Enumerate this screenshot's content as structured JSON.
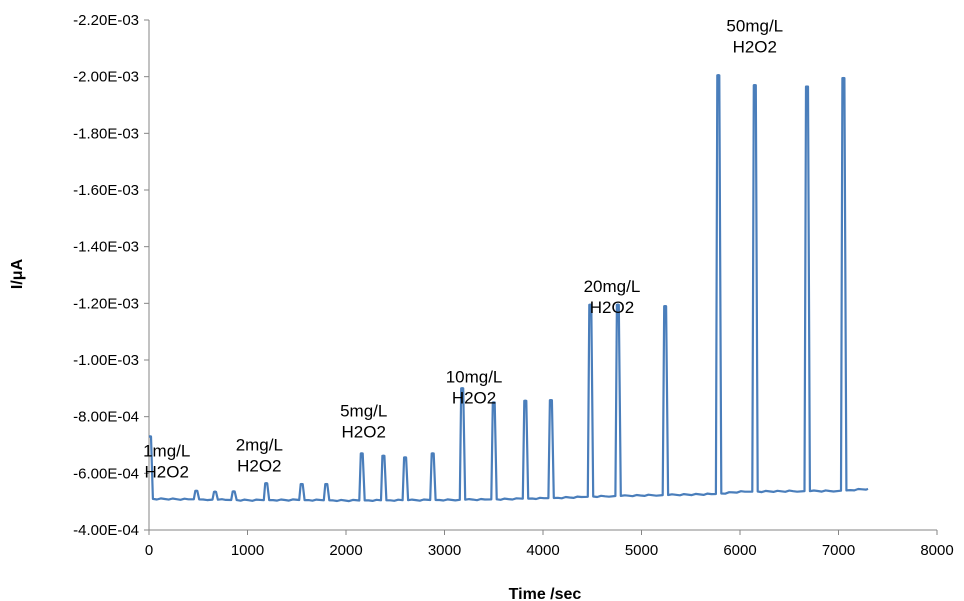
{
  "chart_data": {
    "type": "line",
    "title": "",
    "xlabel": "Time /sec",
    "ylabel": "I/μA",
    "xlim": [
      0,
      8000
    ],
    "ylim": [
      -0.0004,
      -0.0022
    ],
    "x_ticks": [
      "0",
      "1000",
      "2000",
      "3000",
      "4000",
      "5000",
      "6000",
      "7000",
      "8000"
    ],
    "y_ticks": [
      "-4.00E-04",
      "-6.00E-04",
      "-8.00E-04",
      "-1.00E-03",
      "-1.20E-03",
      "-1.40E-03",
      "-1.60E-03",
      "-1.80E-03",
      "-2.00E-03",
      "-2.20E-03"
    ],
    "grid": false,
    "legend": "none",
    "series": [
      {
        "color": "#4a7ebb",
        "baseline": [
          [
            0,
            -0.00051
          ],
          [
            500,
            -0.000508
          ],
          [
            1000,
            -0.000505
          ],
          [
            1500,
            -0.000506
          ],
          [
            2000,
            -0.000504
          ],
          [
            2500,
            -0.000505
          ],
          [
            3000,
            -0.000506
          ],
          [
            3500,
            -0.000508
          ],
          [
            4000,
            -0.000512
          ],
          [
            4300,
            -0.000515
          ],
          [
            4500,
            -0.000518
          ],
          [
            5000,
            -0.000522
          ],
          [
            5500,
            -0.000525
          ],
          [
            5750,
            -0.000527
          ],
          [
            6000,
            -0.000535
          ],
          [
            6500,
            -0.000537
          ],
          [
            7000,
            -0.000538
          ],
          [
            7300,
            -0.000545
          ]
        ],
        "peaks": [
          {
            "x": 10,
            "y": -0.00073
          },
          {
            "x": 480,
            "y": -0.000538
          },
          {
            "x": 670,
            "y": -0.000535
          },
          {
            "x": 860,
            "y": -0.000536
          },
          {
            "x": 1190,
            "y": -0.000565
          },
          {
            "x": 1550,
            "y": -0.000562
          },
          {
            "x": 1800,
            "y": -0.000562
          },
          {
            "x": 2160,
            "y": -0.00067
          },
          {
            "x": 2380,
            "y": -0.000662
          },
          {
            "x": 2600,
            "y": -0.000656
          },
          {
            "x": 2880,
            "y": -0.00067
          },
          {
            "x": 3180,
            "y": -0.0009
          },
          {
            "x": 3500,
            "y": -0.00085
          },
          {
            "x": 3820,
            "y": -0.000856
          },
          {
            "x": 4080,
            "y": -0.000858
          },
          {
            "x": 4480,
            "y": -0.001195
          },
          {
            "x": 4760,
            "y": -0.001195
          },
          {
            "x": 5240,
            "y": -0.00119
          },
          {
            "x": 5780,
            "y": -0.002005
          },
          {
            "x": 6150,
            "y": -0.00197
          },
          {
            "x": 6680,
            "y": -0.001965
          },
          {
            "x": 7050,
            "y": -0.001995
          }
        ]
      }
    ],
    "annotations": [
      {
        "lines": [
          "1mg/L",
          "H2O2"
        ],
        "x": 180,
        "y": -0.00066
      },
      {
        "lines": [
          "2mg/L",
          "H2O2"
        ],
        "x": 1120,
        "y": -0.00068
      },
      {
        "lines": [
          "5mg/L",
          "H2O2"
        ],
        "x": 2180,
        "y": -0.0008
      },
      {
        "lines": [
          "10mg/L",
          "H2O2"
        ],
        "x": 3300,
        "y": -0.00092
      },
      {
        "lines": [
          "20mg/L",
          "H2O2"
        ],
        "x": 4700,
        "y": -0.00124
      },
      {
        "lines": [
          "50mg/L",
          "H2O2"
        ],
        "x": 6150,
        "y": -0.00216
      }
    ]
  }
}
